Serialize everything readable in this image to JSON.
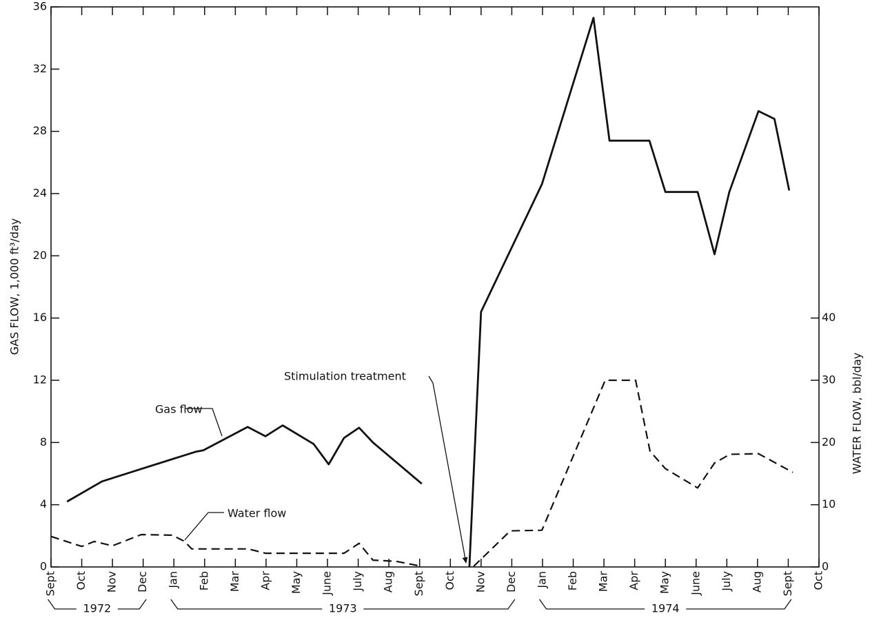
{
  "chart_data": {
    "type": "line",
    "ylabel": "GAS FLOW, 1,000 ft³/day",
    "y2label": "WATER FLOW, bbl/day",
    "xlim": [
      0,
      25
    ],
    "xticks": [
      {
        "value": 0,
        "label": "Sept"
      },
      {
        "value": 1,
        "label": "Oct"
      },
      {
        "value": 2,
        "label": "Nov"
      },
      {
        "value": 3,
        "label": "Dec"
      },
      {
        "value": 4,
        "label": "Jan"
      },
      {
        "value": 5,
        "label": "Feb"
      },
      {
        "value": 6,
        "label": "Mar"
      },
      {
        "value": 7,
        "label": "Apr"
      },
      {
        "value": 8,
        "label": "May"
      },
      {
        "value": 9,
        "label": "June"
      },
      {
        "value": 10,
        "label": "July"
      },
      {
        "value": 11,
        "label": "Aug"
      },
      {
        "value": 12,
        "label": "Sept"
      },
      {
        "value": 13,
        "label": "Oct"
      },
      {
        "value": 14,
        "label": "Nov"
      },
      {
        "value": 15,
        "label": "Dec"
      },
      {
        "value": 16,
        "label": "Jan"
      },
      {
        "value": 17,
        "label": "Feb"
      },
      {
        "value": 18,
        "label": "Mar"
      },
      {
        "value": 19,
        "label": "Apr"
      },
      {
        "value": 20,
        "label": "May"
      },
      {
        "value": 21,
        "label": "June"
      },
      {
        "value": 22,
        "label": "July"
      },
      {
        "value": 23,
        "label": "Aug"
      },
      {
        "value": 24,
        "label": "Sept"
      },
      {
        "value": 25,
        "label": "Oct"
      }
    ],
    "years": [
      "1972",
      "1973",
      "1974"
    ],
    "ylim": [
      0,
      36
    ],
    "yticks": [
      0,
      4,
      8,
      12,
      16,
      20,
      24,
      28,
      32,
      36
    ],
    "y2lim": [
      0,
      90
    ],
    "y2ticks": [
      0,
      10,
      20,
      30,
      40
    ],
    "series": [
      {
        "name": "Gas flow",
        "color": "#111111",
        "linestyle": "solid",
        "x": [
          0.52,
          1.66,
          2.94,
          4.7,
          4.96,
          6.4,
          6.98,
          7.54,
          8.55,
          9.04,
          9.54,
          10.03,
          10.48,
          12.07,
          null,
          13.62,
          14.0,
          15.98,
          17.66,
          18.18,
          19.48,
          20.0,
          21.05,
          21.6,
          22.08,
          23.03,
          23.55,
          24.03
        ],
        "values": [
          4.2,
          5.5,
          6.3,
          7.4,
          7.5,
          9.0,
          8.4,
          9.1,
          7.9,
          6.6,
          8.3,
          8.95,
          8.0,
          5.35,
          null,
          0,
          16.4,
          24.6,
          35.3,
          27.4,
          27.4,
          24.1,
          24.1,
          20.1,
          24.1,
          29.3,
          28.8,
          24.2
        ]
      },
      {
        "name": "Water flow",
        "color": "#111111",
        "linestyle": "dashed",
        "axis": "y2",
        "x": [
          0,
          1.0,
          1.41,
          2.0,
          2.94,
          3.95,
          4.35,
          4.58,
          6.42,
          6.98,
          9.54,
          10.03,
          10.48,
          11.24,
          12.07,
          null,
          13.76,
          14.95,
          15.98,
          18.04,
          19.03,
          19.5,
          20.0,
          21.05,
          21.6,
          22.1,
          23.03,
          24.15
        ],
        "values": [
          4.9,
          3.3,
          4.1,
          3.4,
          5.2,
          5.1,
          4.1,
          2.9,
          2.9,
          2.2,
          2.2,
          3.8,
          1.1,
          0.9,
          0.1,
          null,
          0.1,
          5.8,
          5.9,
          30.0,
          30.0,
          18.6,
          15.8,
          12.7,
          16.7,
          18.1,
          18.2,
          15.2
        ]
      }
    ],
    "annotations": [
      "Gas flow",
      "Water flow",
      "Stimulation treatment"
    ]
  }
}
